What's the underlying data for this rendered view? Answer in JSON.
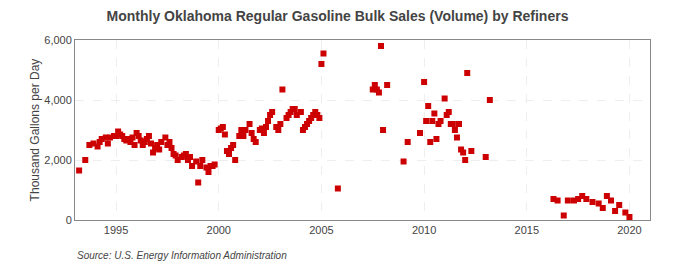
{
  "chart_data": {
    "type": "scatter",
    "title": "Monthly Oklahoma Regular Gasoline Bulk Sales (Volume) by Refiners",
    "ylabel": "Thousand Gallons per Day",
    "source": "Source: U.S. Energy Information Administration",
    "color": "#cc0000",
    "marker": "square",
    "grid": true,
    "xlim": [
      1993.0,
      2021.0
    ],
    "xticks": [
      1995,
      2000,
      2005,
      2010,
      2015,
      2020
    ],
    "ylim": [
      0,
      6000
    ],
    "yticks": [
      0,
      {
        "value": 2000,
        "label": "2,000"
      },
      {
        "value": 4000,
        "label": "4,000"
      },
      {
        "value": 6000,
        "label": "6,000"
      }
    ],
    "x": [
      1993.2,
      1993.5,
      1993.7,
      1993.9,
      1994.1,
      1994.2,
      1994.3,
      1994.5,
      1994.6,
      1994.7,
      1994.9,
      1995.0,
      1995.1,
      1995.2,
      1995.3,
      1995.4,
      1995.5,
      1995.6,
      1995.7,
      1995.8,
      1995.9,
      1996.0,
      1996.1,
      1996.2,
      1996.3,
      1996.4,
      1996.5,
      1996.6,
      1996.7,
      1996.8,
      1996.9,
      1997.0,
      1997.1,
      1997.2,
      1997.4,
      1997.5,
      1997.6,
      1997.7,
      1997.8,
      1997.9,
      1998.0,
      1998.2,
      1998.3,
      1998.4,
      1998.5,
      1998.6,
      1998.7,
      1998.9,
      1999.0,
      1999.1,
      1999.2,
      1999.4,
      1999.5,
      1999.6,
      1999.7,
      1999.8,
      2000.0,
      2000.1,
      2000.2,
      2000.3,
      2000.4,
      2000.5,
      2000.6,
      2000.7,
      2000.8,
      2001.0,
      2001.1,
      2001.2,
      2001.3,
      2001.5,
      2001.6,
      2001.7,
      2001.8,
      2002.0,
      2002.1,
      2002.2,
      2002.3,
      2002.4,
      2002.5,
      2002.6,
      2002.8,
      2002.9,
      2003.0,
      2003.1,
      2003.3,
      2003.4,
      2003.5,
      2003.6,
      2003.7,
      2003.8,
      2004.0,
      2004.1,
      2004.2,
      2004.3,
      2004.4,
      2004.5,
      2004.6,
      2004.7,
      2004.8,
      2004.9,
      2005.0,
      2005.1,
      2005.8,
      2007.5,
      2007.6,
      2007.7,
      2007.8,
      2007.9,
      2008.0,
      2008.2,
      2009.0,
      2009.2,
      2009.8,
      2010.0,
      2010.1,
      2010.2,
      2010.3,
      2010.4,
      2010.5,
      2010.6,
      2010.7,
      2010.8,
      2011.0,
      2011.1,
      2011.2,
      2011.3,
      2011.4,
      2011.5,
      2011.6,
      2011.7,
      2011.8,
      2011.9,
      2012.0,
      2012.1,
      2012.3,
      2013.0,
      2013.2,
      2016.3,
      2016.5,
      2016.8,
      2017.0,
      2017.3,
      2017.5,
      2017.7,
      2017.9,
      2018.2,
      2018.5,
      2018.7,
      2018.9,
      2019.1,
      2019.3,
      2019.5,
      2019.8,
      2020.0
    ],
    "values": [
      1650,
      2000,
      2500,
      2550,
      2450,
      2600,
      2700,
      2750,
      2550,
      2750,
      2800,
      2800,
      2950,
      2850,
      2800,
      2700,
      2650,
      2700,
      2600,
      2750,
      2500,
      2900,
      2800,
      2650,
      2500,
      2600,
      2700,
      2800,
      2550,
      2250,
      2400,
      2500,
      2350,
      2600,
      2750,
      2500,
      2600,
      2400,
      2200,
      2150,
      2000,
      2100,
      2150,
      2200,
      2000,
      2100,
      1800,
      1950,
      1250,
      1800,
      2000,
      1750,
      1600,
      1800,
      1800,
      1850,
      3000,
      3050,
      3100,
      2850,
      2300,
      2200,
      2400,
      2500,
      2000,
      2800,
      3000,
      2800,
      3000,
      3200,
      2900,
      2700,
      2600,
      3000,
      3050,
      2900,
      3100,
      3300,
      3500,
      3600,
      3100,
      3000,
      3200,
      4350,
      3400,
      3500,
      3600,
      3700,
      3700,
      3500,
      3600,
      3000,
      3100,
      3200,
      3300,
      3400,
      3500,
      3600,
      3500,
      3400,
      5200,
      5550,
      1050,
      4350,
      4500,
      4350,
      4250,
      5800,
      3000,
      4500,
      1950,
      2600,
      2900,
      4600,
      3300,
      3800,
      2600,
      3300,
      3550,
      2700,
      3200,
      3300,
      4050,
      3500,
      3600,
      3200,
      3200,
      3000,
      2750,
      3200,
      2350,
      2250,
      2000,
      4900,
      2300,
      2100,
      4000,
      700,
      650,
      150,
      650,
      650,
      700,
      800,
      700,
      600,
      550,
      400,
      800,
      650,
      300,
      500,
      250,
      100
    ]
  }
}
